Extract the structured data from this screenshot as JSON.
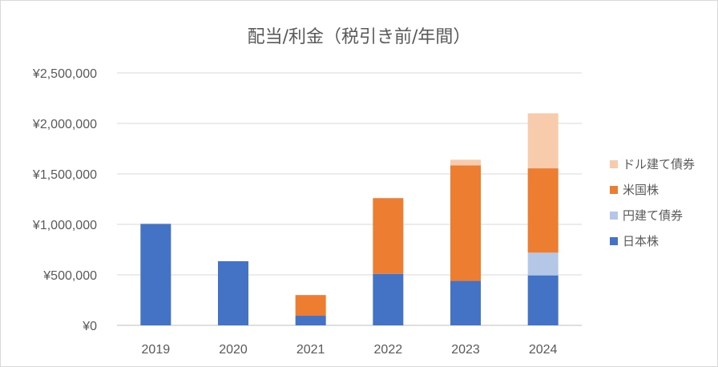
{
  "chart_data": {
    "type": "bar",
    "stacked": true,
    "title": "配当/利金（税引き前/年間）",
    "xlabel": "",
    "ylabel": "",
    "categories": [
      "2019",
      "2020",
      "2021",
      "2022",
      "2023",
      "2024"
    ],
    "ylim": [
      0,
      2500000
    ],
    "yticks": [
      0,
      500000,
      1000000,
      1500000,
      2000000,
      2500000
    ],
    "ytick_labels": [
      "¥0",
      "¥500,000",
      "¥1,000,000",
      "¥1,500,000",
      "¥2,000,000",
      "¥2,500,000"
    ],
    "grid": true,
    "legend_position": "right",
    "series": [
      {
        "name": "日本株",
        "color": "#4472c4",
        "values": [
          1005000,
          635000,
          95000,
          510000,
          440000,
          495000
        ]
      },
      {
        "name": "円建て債券",
        "color": "#b4c7e7",
        "values": [
          0,
          0,
          0,
          0,
          0,
          225000
        ]
      },
      {
        "name": "米国株",
        "color": "#ed7d31",
        "values": [
          0,
          0,
          205000,
          750000,
          1145000,
          835000
        ]
      },
      {
        "name": "ドル建て債券",
        "color": "#f8cbad",
        "values": [
          0,
          0,
          0,
          0,
          55000,
          545000
        ]
      }
    ],
    "legend_order": [
      "ドル建て債券",
      "米国株",
      "円建て債券",
      "日本株"
    ]
  }
}
